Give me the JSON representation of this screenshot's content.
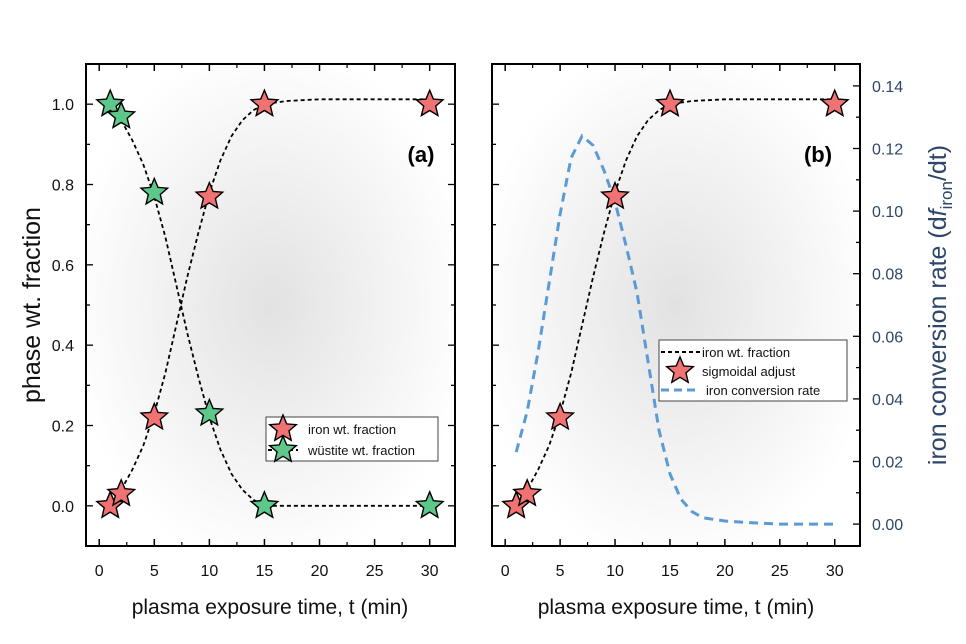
{
  "chart_data": [
    {
      "type": "scatter",
      "panel_label": "(a)",
      "xlabel": "plasma exposure time, t (min)",
      "ylabel": "phase wt. fraction",
      "xlim": [
        -1.2,
        32.3
      ],
      "ylim": [
        -0.1,
        1.1
      ],
      "xticks": [
        "0",
        "5",
        "10",
        "15",
        "20",
        "25",
        "30"
      ],
      "yticks": [
        "0.0",
        "0.2",
        "0.4",
        "0.6",
        "0.8",
        "1.0"
      ],
      "legend_position": "lower-right",
      "series": [
        {
          "name": "iron wt. fraction",
          "color": "#f07272",
          "x": [
            1,
            2,
            5,
            10,
            15,
            30
          ],
          "y": [
            0.0,
            0.03,
            0.22,
            0.77,
            1.0,
            1.0
          ],
          "fit": {
            "x": [
              2,
              3,
              4,
              5,
              6,
              7,
              8,
              9,
              10,
              11,
              12,
              13,
              14,
              15,
              17,
              20,
              30
            ],
            "y": [
              0.04,
              0.09,
              0.15,
              0.23,
              0.33,
              0.45,
              0.57,
              0.68,
              0.78,
              0.86,
              0.92,
              0.96,
              0.985,
              1.0,
              1.008,
              1.012,
              1.012
            ]
          }
        },
        {
          "name": "wüstite wt. fraction",
          "color": "#5ec78a",
          "x": [
            1,
            2,
            5,
            10,
            15,
            30
          ],
          "y": [
            1.0,
            0.97,
            0.78,
            0.23,
            0.0,
            0.0
          ],
          "fit": {
            "x": [
              2,
              3,
              4,
              5,
              6,
              7,
              8,
              9,
              10,
              11,
              12,
              13,
              14,
              15,
              30
            ],
            "y": [
              0.96,
              0.91,
              0.85,
              0.77,
              0.67,
              0.55,
              0.43,
              0.32,
              0.22,
              0.14,
              0.08,
              0.04,
              0.015,
              0.0,
              0.0
            ]
          }
        }
      ]
    },
    {
      "type": "scatter",
      "panel_label": "(b)",
      "xlabel": "plasma exposure time, t (min)",
      "ylabel_right": {
        "prefix": "iron conversion rate (d",
        "italic": "f",
        "sub": "iron",
        "suffix": "/dt)"
      },
      "xlim": [
        -1.2,
        32.3
      ],
      "ylim": [
        -0.1,
        1.1
      ],
      "ylim_right": [
        -0.007,
        0.147
      ],
      "xticks": [
        "0",
        "5",
        "10",
        "15",
        "20",
        "25",
        "30"
      ],
      "yticks_right": [
        "0.00",
        "0.02",
        "0.04",
        "0.06",
        "0.08",
        "0.10",
        "0.12",
        "0.14"
      ],
      "right_axis_color": "#2e4668",
      "legend_position": "center-right",
      "legend": [
        "iron wt. fraction",
        "sigmoidal adjust",
        "iron conversion rate"
      ],
      "series": [
        {
          "name": "sigmoidal adjust",
          "color": "#f07272",
          "x": [
            1,
            2,
            5,
            10,
            15,
            30
          ],
          "y": [
            0.0,
            0.03,
            0.22,
            0.77,
            1.0,
            1.0
          ]
        },
        {
          "name": "iron wt. fraction",
          "color": "#000000",
          "x": [
            1,
            2,
            3,
            4,
            5,
            6,
            7,
            8,
            9,
            10,
            11,
            12,
            13,
            14,
            15,
            17,
            20,
            30
          ],
          "y": [
            0.0,
            0.04,
            0.09,
            0.15,
            0.23,
            0.33,
            0.45,
            0.57,
            0.68,
            0.78,
            0.86,
            0.92,
            0.96,
            0.985,
            1.0,
            1.008,
            1.012,
            1.012
          ]
        },
        {
          "name": "iron conversion rate",
          "color": "#5b9bd5",
          "axis": "right",
          "x": [
            1,
            2,
            3,
            4,
            5,
            6,
            7,
            8,
            9,
            10,
            11,
            12,
            13,
            14,
            15,
            16,
            17,
            18,
            20,
            22,
            25,
            30
          ],
          "y": [
            0.023,
            0.036,
            0.055,
            0.077,
            0.099,
            0.117,
            0.124,
            0.121,
            0.113,
            0.103,
            0.089,
            0.074,
            0.052,
            0.03,
            0.016,
            0.008,
            0.004,
            0.002,
            0.001,
            0.0005,
            0.0,
            0.0
          ]
        }
      ]
    }
  ]
}
